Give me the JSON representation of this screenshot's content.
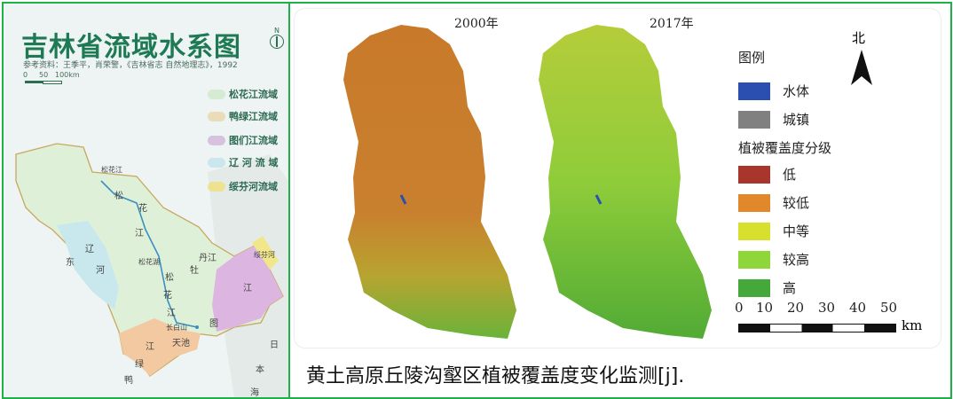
{
  "left_map": {
    "title": "吉林省流域水系图",
    "reference": "参考资料：王季平，肖荣警，《吉林省志 自然地理志》，1992",
    "scale_labels": [
      "0",
      "50",
      "100km"
    ],
    "north_label": "N",
    "legend": [
      {
        "label": "松花江流域",
        "color": "#cfe8c8"
      },
      {
        "label": "鸭绿江流域",
        "color": "#e8d6a8"
      },
      {
        "label": "图们江流域",
        "color": "#d2b4d6"
      },
      {
        "label": "辽 河 流 域",
        "color": "#bfe3ea"
      },
      {
        "label": "绥芬河流域",
        "color": "#f0e07a"
      }
    ],
    "map_labels": [
      "松花江",
      "松",
      "花",
      "江",
      "辽",
      "东",
      "河",
      "松花湖",
      "松",
      "花",
      "江",
      "长白山",
      "天池",
      "江",
      "绿",
      "鸭",
      "图",
      "江",
      "绥芬河",
      "丹江",
      "牡",
      "日",
      "本",
      "海"
    ]
  },
  "right_map": {
    "year_left": "2000年",
    "year_right": "2017年",
    "north_label": "北",
    "legend_title": "图例",
    "legend_group": "植被覆盖度分级",
    "legend_top": [
      {
        "label": "水体",
        "color": "#2a4fb0"
      },
      {
        "label": "城镇",
        "color": "#808080"
      }
    ],
    "legend_levels": [
      {
        "label": "低",
        "color": "#a8362c"
      },
      {
        "label": "较低",
        "color": "#e0882a"
      },
      {
        "label": "中等",
        "color": "#d7e02c"
      },
      {
        "label": "较高",
        "color": "#8fd63a"
      },
      {
        "label": "高",
        "color": "#45a83a"
      }
    ],
    "scale_ticks": [
      "0",
      "10",
      "20",
      "30",
      "40",
      "50"
    ],
    "scale_unit": "km"
  },
  "caption": "黄土高原丘陵沟壑区植被覆盖度变化监测[j]."
}
